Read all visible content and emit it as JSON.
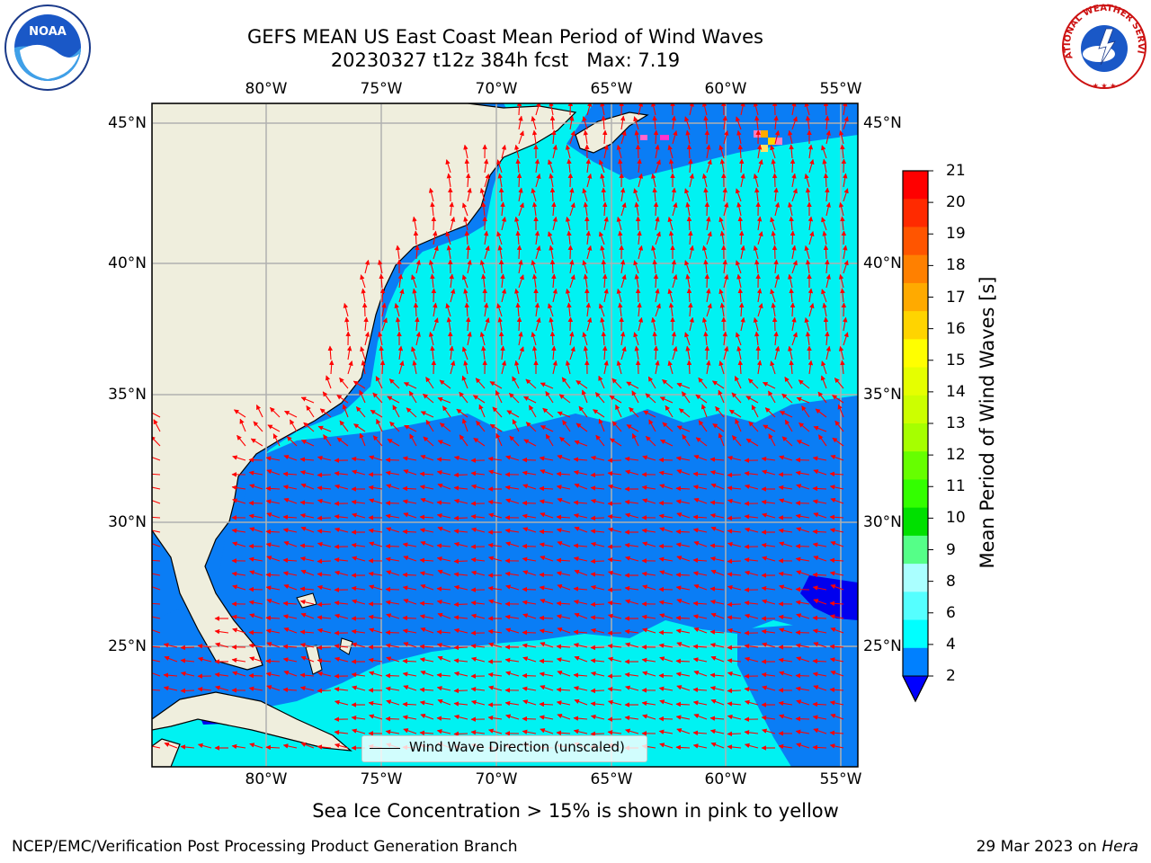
{
  "title": {
    "line1": "GEFS MEAN US East Coast Mean Period of Wind Waves",
    "line2": "20230327 t12z 384h fcst   Max: 7.19"
  },
  "logos": {
    "left": {
      "icon": "noaa-logo",
      "text": "NOAA"
    },
    "right": {
      "icon": "national-weather-service-logo",
      "text": "NATIONAL WEATHER SERVICE"
    }
  },
  "map": {
    "lon_ticks": [
      "80°W",
      "75°W",
      "70°W",
      "65°W",
      "60°W",
      "55°W"
    ],
    "lat_ticks_left": [
      "45°N",
      "40°N",
      "35°N",
      "30°N",
      "25°N"
    ],
    "lat_ticks_right": [
      "45°N",
      "40°N",
      "35°N",
      "30°N",
      "25°N"
    ],
    "lon_range": [
      -85,
      -54.2
    ],
    "lat_range": [
      20.5,
      46
    ],
    "land_color": "#efeedd",
    "ocean_color_dark": "#0a7df5",
    "ocean_color_light": "#00f2f2",
    "arrow_color": "#ff0000",
    "gridline_color": "#b0b0b0",
    "legend_label": "Wind Wave Direction (unscaled)"
  },
  "colorbar": {
    "label": "Mean Period of Wind Waves [s]",
    "ticks": [
      "21",
      "20",
      "19",
      "18",
      "17",
      "16",
      "15",
      "14",
      "13",
      "12",
      "11",
      "10",
      "9",
      "8",
      "6",
      "4",
      "2"
    ],
    "colors": [
      "#ff0000",
      "#ff2a00",
      "#ff5500",
      "#ff8000",
      "#ffaa00",
      "#ffd400",
      "#ffff00",
      "#e5ff00",
      "#ccff00",
      "#a6ff00",
      "#66ff00",
      "#33ff00",
      "#00e000",
      "#55ff88",
      "#aaffff",
      "#55ffff",
      "#00ffff",
      "#0080ff"
    ],
    "extend_color": "#0000ff"
  },
  "footer": {
    "note": "Sea Ice Concentration > 15% is shown in pink to yellow",
    "left": "NCEP/EMC/Verification Post Processing Product Generation Branch",
    "right_prefix": "29 Mar 2023 on ",
    "right_italic": "Hera"
  }
}
